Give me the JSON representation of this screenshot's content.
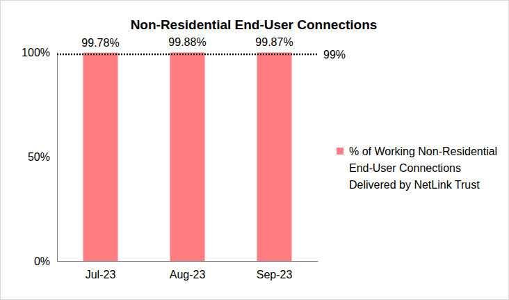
{
  "chart_data": {
    "type": "bar",
    "title": "Non-Residential End-User Connections",
    "categories": [
      "Jul-23",
      "Aug-23",
      "Sep-23"
    ],
    "series": [
      {
        "name": "% of Working Non-Residential End-User Connections Delivered by NetLink Trust",
        "color": "#ff7c80",
        "values": [
          99.78,
          99.88,
          99.87
        ],
        "value_labels": [
          "99.78%",
          "99.88%",
          "99.87%"
        ]
      }
    ],
    "reference_line": {
      "value": 99,
      "label": "99%"
    },
    "ylim": [
      0,
      100
    ],
    "yticks": [
      {
        "value": 0,
        "label": "0%"
      },
      {
        "value": 50,
        "label": "50%"
      },
      {
        "value": 100,
        "label": "100%"
      }
    ],
    "grid": false,
    "data_labels": true,
    "legend": "right"
  }
}
